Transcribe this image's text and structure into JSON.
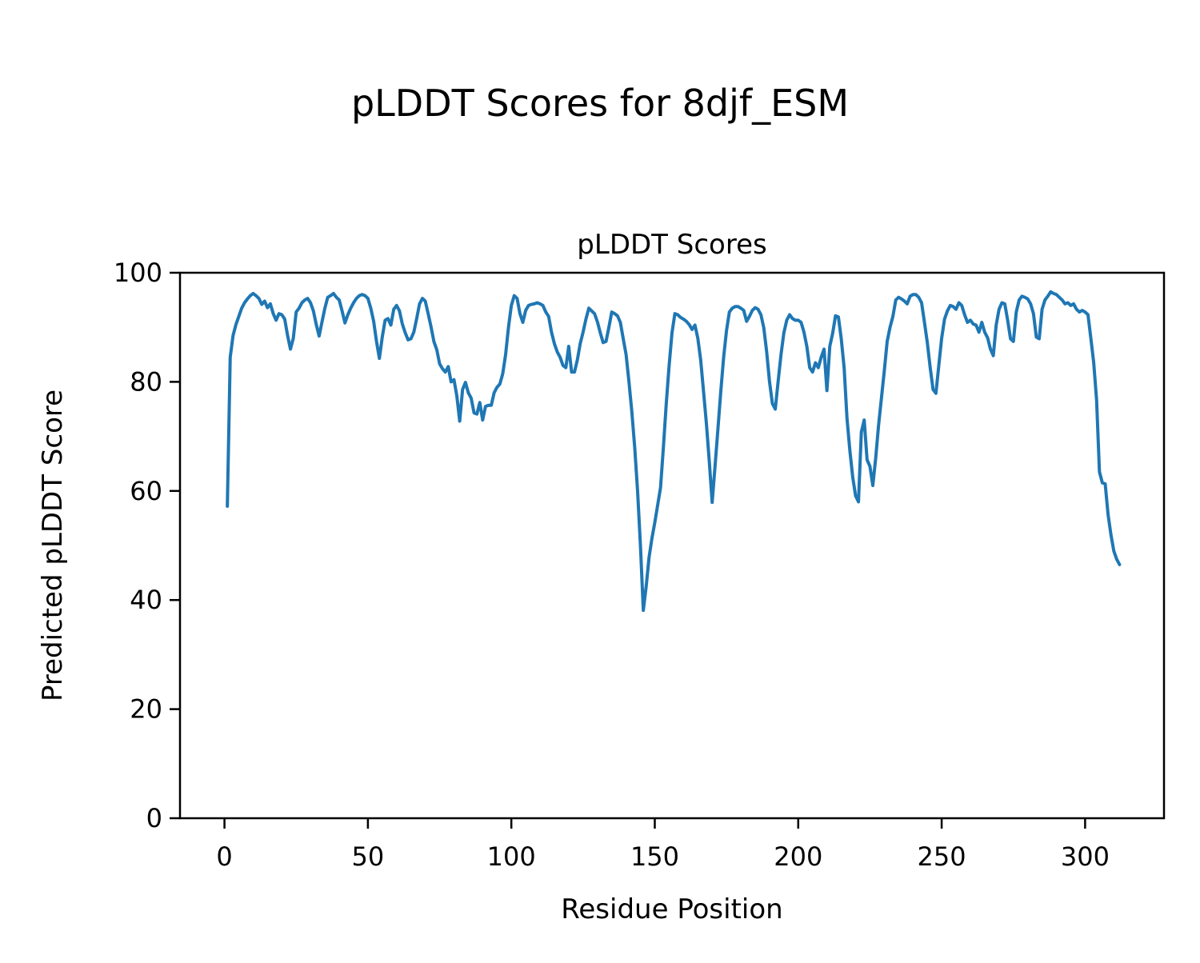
{
  "figure_title": "pLDDT Scores for 8djf_ESM",
  "chart_data": {
    "type": "line",
    "title": "pLDDT Scores",
    "xlabel": "Residue Position",
    "ylabel": "Predicted pLDDT Score",
    "line_color": "#1f77b4",
    "axis_color": "#000000",
    "grid": false,
    "legend": null,
    "xlim": [
      -15.5,
      327.5
    ],
    "ylim": [
      0,
      100
    ],
    "xticks": [
      0,
      50,
      100,
      150,
      200,
      250,
      300
    ],
    "yticks": [
      0,
      20,
      40,
      60,
      80,
      100
    ],
    "x_start": 1,
    "x_step": 1,
    "y": [
      57.2,
      84.5,
      88.5,
      90.5,
      92.0,
      93.5,
      94.5,
      95.2,
      95.8,
      96.2,
      95.8,
      95.3,
      94.2,
      94.8,
      93.6,
      94.3,
      92.5,
      91.3,
      92.5,
      92.3,
      91.5,
      88.5,
      86.0,
      88.0,
      92.8,
      93.5,
      94.5,
      95.0,
      95.3,
      94.5,
      93.0,
      90.5,
      88.4,
      91.0,
      93.5,
      95.5,
      95.8,
      96.2,
      95.5,
      95.0,
      93.0,
      90.8,
      92.3,
      93.5,
      94.5,
      95.3,
      95.8,
      96.0,
      95.8,
      95.3,
      93.5,
      91.1,
      87.4,
      84.3,
      88.2,
      91.3,
      91.6,
      90.4,
      93.3,
      94.0,
      93.0,
      90.6,
      89.0,
      87.7,
      87.9,
      89.1,
      91.6,
      94.3,
      95.3,
      94.8,
      92.5,
      90.1,
      87.4,
      85.9,
      83.3,
      82.4,
      81.8,
      82.8,
      80.0,
      80.4,
      77.4,
      72.8,
      78.6,
      79.9,
      78.0,
      77.0,
      74.3,
      74.1,
      76.2,
      73.0,
      75.5,
      75.7,
      75.7,
      78.0,
      79.0,
      79.6,
      81.5,
      85.0,
      90.0,
      94.0,
      95.8,
      95.3,
      92.5,
      90.9,
      93.1,
      94.0,
      94.2,
      94.3,
      94.5,
      94.3,
      94.0,
      92.8,
      92.0,
      89.1,
      87.0,
      85.5,
      84.5,
      83.0,
      82.6,
      86.5,
      81.8,
      81.8,
      84.0,
      87.0,
      89.1,
      91.5,
      93.5,
      93.0,
      92.5,
      91.0,
      89.0,
      87.2,
      87.4,
      90.0,
      92.8,
      92.5,
      92.1,
      90.9,
      87.9,
      85.0,
      80.0,
      74.5,
      68.0,
      60.0,
      50.0,
      38.1,
      42.5,
      47.8,
      51.3,
      54.2,
      57.4,
      60.6,
      68.0,
      76.0,
      83.0,
      89.0,
      92.5,
      92.3,
      91.8,
      91.5,
      91.1,
      90.5,
      89.6,
      90.4,
      88.0,
      84.0,
      78.2,
      72.3,
      65.4,
      57.9,
      64.5,
      71.3,
      78.2,
      84.5,
      89.4,
      92.8,
      93.5,
      93.8,
      93.8,
      93.5,
      93.1,
      91.1,
      92.0,
      93.1,
      93.6,
      93.3,
      92.3,
      89.9,
      85.5,
      80.0,
      76.0,
      75.0,
      80.1,
      85.0,
      89.0,
      91.3,
      92.3,
      91.6,
      91.3,
      91.3,
      90.9,
      89.1,
      86.5,
      82.6,
      81.8,
      83.5,
      82.6,
      84.5,
      86.0,
      78.4,
      86.5,
      88.9,
      92.1,
      91.9,
      87.9,
      82.6,
      73.3,
      67.4,
      62.5,
      59.1,
      58.0,
      70.8,
      73.0,
      65.7,
      64.5,
      61.0,
      66.0,
      72.0,
      77.0,
      82.0,
      87.4,
      90.0,
      92.0,
      95.0,
      95.5,
      95.2,
      94.8,
      94.3,
      95.7,
      96.0,
      96.0,
      95.5,
      94.5,
      90.9,
      87.2,
      82.6,
      78.6,
      77.9,
      83.0,
      88.0,
      91.5,
      93.0,
      94.0,
      93.8,
      93.3,
      94.5,
      94.0,
      92.3,
      90.9,
      91.3,
      90.6,
      90.4,
      89.1,
      90.9,
      89.1,
      88.1,
      86.0,
      84.8,
      90.4,
      93.3,
      94.5,
      94.3,
      91.3,
      87.9,
      87.4,
      92.8,
      95.0,
      95.7,
      95.5,
      95.2,
      94.3,
      92.5,
      88.2,
      87.9,
      93.3,
      95.0,
      95.7,
      96.5,
      96.2,
      96.0,
      95.5,
      95.0,
      94.3,
      94.5,
      94.0,
      94.3,
      93.3,
      92.8,
      93.1,
      92.8,
      92.3,
      88.0,
      83.5,
      76.7,
      63.5,
      61.5,
      61.3,
      55.7,
      52.0,
      49.0,
      47.5,
      46.5
    ]
  }
}
